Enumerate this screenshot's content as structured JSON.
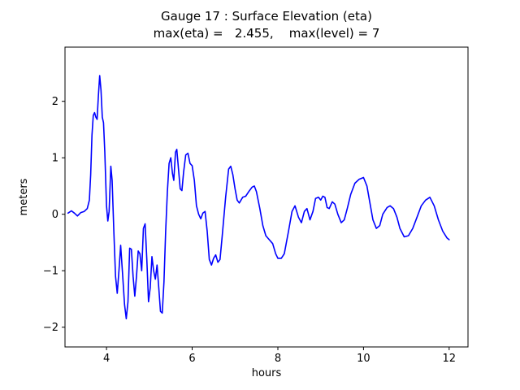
{
  "figure": {
    "title": "Gauge 17 : Surface Elevation (eta)",
    "subtitle": "max(eta) =   2.455,    max(level) = 7",
    "background": "#ffffff"
  },
  "chart_data": {
    "type": "line",
    "title": "Gauge 17 : Surface Elevation (eta)",
    "subtitle": "max(eta) = 2.455, max(level) = 7",
    "max_eta": 2.455,
    "max_level": 7,
    "xlabel": "hours",
    "ylabel": "meters",
    "xlim": [
      3.03,
      12.44
    ],
    "ylim": [
      -2.35,
      2.96
    ],
    "xticks": [
      4,
      6,
      8,
      10,
      12
    ],
    "yticks": [
      -2,
      -1,
      0,
      1,
      2
    ],
    "grid": false,
    "legend": null,
    "line_color": "#0000ff",
    "frame_color": "#000000",
    "series": [
      {
        "name": "eta",
        "color": "#0000ff",
        "x": [
          3.1,
          3.18,
          3.25,
          3.32,
          3.4,
          3.48,
          3.55,
          3.6,
          3.63,
          3.66,
          3.69,
          3.72,
          3.75,
          3.78,
          3.81,
          3.84,
          3.87,
          3.9,
          3.93,
          3.96,
          4.0,
          4.03,
          4.06,
          4.1,
          4.13,
          4.17,
          4.21,
          4.25,
          4.29,
          4.33,
          4.37,
          4.42,
          4.46,
          4.5,
          4.54,
          4.58,
          4.62,
          4.66,
          4.7,
          4.74,
          4.78,
          4.82,
          4.86,
          4.9,
          4.94,
          4.98,
          5.02,
          5.06,
          5.1,
          5.14,
          5.18,
          5.22,
          5.26,
          5.3,
          5.34,
          5.38,
          5.42,
          5.46,
          5.5,
          5.54,
          5.57,
          5.61,
          5.64,
          5.68,
          5.72,
          5.76,
          5.8,
          5.85,
          5.9,
          5.95,
          6.0,
          6.05,
          6.1,
          6.15,
          6.2,
          6.25,
          6.3,
          6.35,
          6.4,
          6.45,
          6.5,
          6.55,
          6.6,
          6.65,
          6.7,
          6.78,
          6.85,
          6.9,
          6.95,
          7.0,
          7.05,
          7.1,
          7.18,
          7.25,
          7.32,
          7.4,
          7.45,
          7.5,
          7.58,
          7.65,
          7.72,
          7.8,
          7.88,
          7.95,
          8.0,
          8.08,
          8.15,
          8.25,
          8.33,
          8.4,
          8.48,
          8.55,
          8.62,
          8.68,
          8.75,
          8.82,
          8.88,
          8.95,
          9.0,
          9.05,
          9.1,
          9.15,
          9.2,
          9.27,
          9.33,
          9.4,
          9.48,
          9.55,
          9.62,
          9.7,
          9.8,
          9.9,
          10.0,
          10.08,
          10.15,
          10.22,
          10.3,
          10.38,
          10.45,
          10.55,
          10.62,
          10.7,
          10.78,
          10.85,
          10.95,
          11.05,
          11.15,
          11.25,
          11.35,
          11.45,
          11.55,
          11.65,
          11.75,
          11.85,
          11.95,
          12.0
        ],
        "y": [
          0.02,
          0.06,
          0.02,
          -0.03,
          0.03,
          0.05,
          0.1,
          0.25,
          0.7,
          1.4,
          1.75,
          1.8,
          1.72,
          1.68,
          2.1,
          2.455,
          2.2,
          1.72,
          1.62,
          1.1,
          0.15,
          -0.12,
          0.05,
          0.85,
          0.6,
          -0.3,
          -1.1,
          -1.4,
          -1.0,
          -0.55,
          -1.0,
          -1.6,
          -1.85,
          -1.55,
          -0.6,
          -0.62,
          -1.1,
          -1.45,
          -1.1,
          -0.65,
          -0.7,
          -1.0,
          -0.25,
          -0.17,
          -0.8,
          -1.55,
          -1.3,
          -0.75,
          -1.0,
          -1.15,
          -0.9,
          -1.3,
          -1.72,
          -1.75,
          -1.2,
          -0.3,
          0.4,
          0.9,
          1.0,
          0.72,
          0.6,
          1.1,
          1.15,
          0.8,
          0.45,
          0.42,
          0.75,
          1.05,
          1.08,
          0.9,
          0.86,
          0.6,
          0.15,
          0.0,
          -0.08,
          0.02,
          0.05,
          -0.3,
          -0.8,
          -0.9,
          -0.78,
          -0.72,
          -0.85,
          -0.8,
          -0.4,
          0.3,
          0.8,
          0.85,
          0.7,
          0.45,
          0.25,
          0.2,
          0.3,
          0.32,
          0.4,
          0.48,
          0.5,
          0.4,
          0.1,
          -0.2,
          -0.38,
          -0.45,
          -0.52,
          -0.7,
          -0.78,
          -0.78,
          -0.7,
          -0.3,
          0.05,
          0.15,
          -0.05,
          -0.15,
          0.05,
          0.1,
          -0.1,
          0.05,
          0.28,
          0.3,
          0.25,
          0.32,
          0.3,
          0.12,
          0.1,
          0.22,
          0.18,
          0.0,
          -0.15,
          -0.1,
          0.1,
          0.35,
          0.55,
          0.62,
          0.65,
          0.5,
          0.2,
          -0.1,
          -0.25,
          -0.2,
          0.0,
          0.12,
          0.15,
          0.1,
          -0.05,
          -0.25,
          -0.4,
          -0.38,
          -0.25,
          -0.05,
          0.15,
          0.25,
          0.3,
          0.15,
          -0.1,
          -0.3,
          -0.42,
          -0.45
        ]
      }
    ]
  }
}
